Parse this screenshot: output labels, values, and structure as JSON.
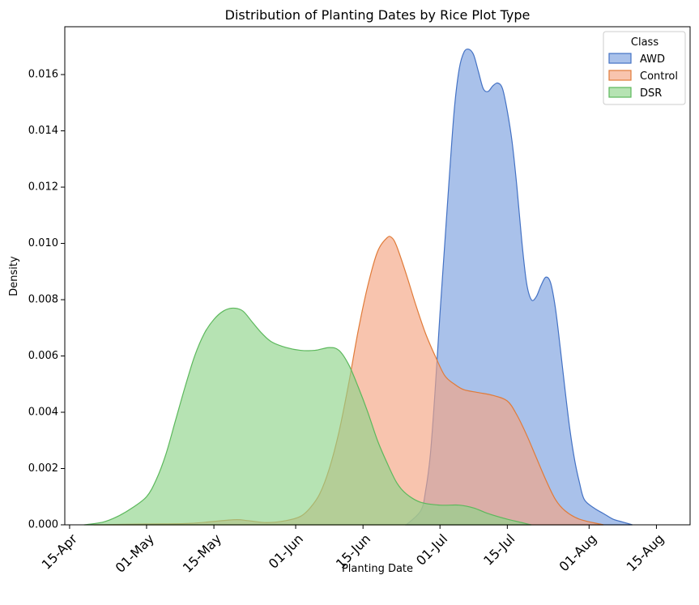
{
  "chart_data": {
    "type": "area",
    "title": "Distribution of Planting Dates by Rice Plot Type",
    "xlabel": "Planting Date",
    "ylabel": "Density",
    "xlim": [
      "2023-04-14",
      "2023-08-22"
    ],
    "ylim": [
      0,
      0.0177
    ],
    "x_ticks": [
      {
        "date": "2023-04-15",
        "label": "15-Apr"
      },
      {
        "date": "2023-05-01",
        "label": "01-May"
      },
      {
        "date": "2023-05-15",
        "label": "15-May"
      },
      {
        "date": "2023-06-01",
        "label": "01-Jun"
      },
      {
        "date": "2023-06-15",
        "label": "15-Jun"
      },
      {
        "date": "2023-07-01",
        "label": "01-Jul"
      },
      {
        "date": "2023-07-15",
        "label": "15-Jul"
      },
      {
        "date": "2023-08-01",
        "label": "01-Aug"
      },
      {
        "date": "2023-08-15",
        "label": "15-Aug"
      }
    ],
    "y_ticks": [
      {
        "value": 0.0,
        "label": "0.000"
      },
      {
        "value": 0.002,
        "label": "0.002"
      },
      {
        "value": 0.004,
        "label": "0.004"
      },
      {
        "value": 0.006,
        "label": "0.006"
      },
      {
        "value": 0.008,
        "label": "0.008"
      },
      {
        "value": 0.01,
        "label": "0.010"
      },
      {
        "value": 0.012,
        "label": "0.012"
      },
      {
        "value": 0.014,
        "label": "0.014"
      },
      {
        "value": 0.016,
        "label": "0.016"
      }
    ],
    "grid": false,
    "legend": {
      "title": "Class",
      "position": "top-right"
    },
    "series": [
      {
        "name": "AWD",
        "fill": "#7b9fde",
        "stroke": "#4472c4",
        "points": [
          [
            "2023-06-24",
            0.0
          ],
          [
            "2023-06-27",
            0.0005
          ],
          [
            "2023-06-28",
            0.0012
          ],
          [
            "2023-06-29",
            0.0025
          ],
          [
            "2023-06-30",
            0.0048
          ],
          [
            "2023-07-01",
            0.0075
          ],
          [
            "2023-07-02",
            0.01
          ],
          [
            "2023-07-03",
            0.0125
          ],
          [
            "2023-07-04",
            0.0148
          ],
          [
            "2023-07-05",
            0.0162
          ],
          [
            "2023-07-06",
            0.0168
          ],
          [
            "2023-07-07",
            0.0169
          ],
          [
            "2023-07-08",
            0.0167
          ],
          [
            "2023-07-09",
            0.0161
          ],
          [
            "2023-07-10",
            0.0155
          ],
          [
            "2023-07-11",
            0.0154
          ],
          [
            "2023-07-12",
            0.0156
          ],
          [
            "2023-07-13",
            0.0157
          ],
          [
            "2023-07-14",
            0.0155
          ],
          [
            "2023-07-15",
            0.0147
          ],
          [
            "2023-07-16",
            0.0136
          ],
          [
            "2023-07-17",
            0.012
          ],
          [
            "2023-07-18",
            0.0101
          ],
          [
            "2023-07-19",
            0.0086
          ],
          [
            "2023-07-20",
            0.008
          ],
          [
            "2023-07-21",
            0.0081
          ],
          [
            "2023-07-22",
            0.0085
          ],
          [
            "2023-07-23",
            0.0088
          ],
          [
            "2023-07-24",
            0.0086
          ],
          [
            "2023-07-25",
            0.0077
          ],
          [
            "2023-07-26",
            0.0063
          ],
          [
            "2023-07-27",
            0.0048
          ],
          [
            "2023-07-28",
            0.0034
          ],
          [
            "2023-07-29",
            0.0023
          ],
          [
            "2023-07-30",
            0.0015
          ],
          [
            "2023-07-31",
            0.0009
          ],
          [
            "2023-08-02",
            0.0006
          ],
          [
            "2023-08-04",
            0.0004
          ],
          [
            "2023-08-06",
            0.0002
          ],
          [
            "2023-08-08",
            0.0001
          ],
          [
            "2023-08-10",
            0.0
          ]
        ]
      },
      {
        "name": "Control",
        "fill": "#f4a582",
        "stroke": "#e07b39",
        "points": [
          [
            "2023-04-20",
            0.0
          ],
          [
            "2023-05-01",
            3e-05
          ],
          [
            "2023-05-10",
            5e-05
          ],
          [
            "2023-05-19",
            0.00018
          ],
          [
            "2023-05-22",
            0.00015
          ],
          [
            "2023-05-26",
            8e-05
          ],
          [
            "2023-05-30",
            0.00015
          ],
          [
            "2023-06-02",
            0.0003
          ],
          [
            "2023-06-04",
            0.0006
          ],
          [
            "2023-06-06",
            0.0011
          ],
          [
            "2023-06-08",
            0.002
          ],
          [
            "2023-06-10",
            0.0033
          ],
          [
            "2023-06-12",
            0.005
          ],
          [
            "2023-06-14",
            0.0069
          ],
          [
            "2023-06-16",
            0.0085
          ],
          [
            "2023-06-18",
            0.0097
          ],
          [
            "2023-06-20",
            0.0102
          ],
          [
            "2023-06-21",
            0.0102
          ],
          [
            "2023-06-22",
            0.0099
          ],
          [
            "2023-06-24",
            0.0089
          ],
          [
            "2023-06-26",
            0.0078
          ],
          [
            "2023-06-28",
            0.0068
          ],
          [
            "2023-06-30",
            0.006
          ],
          [
            "2023-07-02",
            0.0053
          ],
          [
            "2023-07-04",
            0.005
          ],
          [
            "2023-07-06",
            0.0048
          ],
          [
            "2023-07-09",
            0.0047
          ],
          [
            "2023-07-12",
            0.0046
          ],
          [
            "2023-07-15",
            0.0044
          ],
          [
            "2023-07-17",
            0.0039
          ],
          [
            "2023-07-19",
            0.0032
          ],
          [
            "2023-07-21",
            0.0024
          ],
          [
            "2023-07-23",
            0.0016
          ],
          [
            "2023-07-25",
            0.0009
          ],
          [
            "2023-07-27",
            0.0005
          ],
          [
            "2023-07-30",
            0.0002
          ],
          [
            "2023-08-04",
            0.0
          ]
        ]
      },
      {
        "name": "DSR",
        "fill": "#8fd48a",
        "stroke": "#5cb85c",
        "points": [
          [
            "2023-04-18",
            0.0
          ],
          [
            "2023-04-22",
            0.0001
          ],
          [
            "2023-04-25",
            0.0003
          ],
          [
            "2023-04-28",
            0.0006
          ],
          [
            "2023-05-01",
            0.001
          ],
          [
            "2023-05-03",
            0.0016
          ],
          [
            "2023-05-05",
            0.0025
          ],
          [
            "2023-05-07",
            0.0037
          ],
          [
            "2023-05-09",
            0.0049
          ],
          [
            "2023-05-11",
            0.006
          ],
          [
            "2023-05-13",
            0.0068
          ],
          [
            "2023-05-15",
            0.0073
          ],
          [
            "2023-05-17",
            0.0076
          ],
          [
            "2023-05-19",
            0.0077
          ],
          [
            "2023-05-21",
            0.0076
          ],
          [
            "2023-05-23",
            0.0072
          ],
          [
            "2023-05-25",
            0.0068
          ],
          [
            "2023-05-27",
            0.0065
          ],
          [
            "2023-05-30",
            0.0063
          ],
          [
            "2023-06-02",
            0.0062
          ],
          [
            "2023-06-05",
            0.0062
          ],
          [
            "2023-06-08",
            0.0063
          ],
          [
            "2023-06-10",
            0.0062
          ],
          [
            "2023-06-12",
            0.0057
          ],
          [
            "2023-06-14",
            0.0049
          ],
          [
            "2023-06-16",
            0.004
          ],
          [
            "2023-06-18",
            0.003
          ],
          [
            "2023-06-20",
            0.0022
          ],
          [
            "2023-06-22",
            0.0015
          ],
          [
            "2023-06-24",
            0.0011
          ],
          [
            "2023-06-27",
            0.0008
          ],
          [
            "2023-07-01",
            0.0007
          ],
          [
            "2023-07-05",
            0.0007
          ],
          [
            "2023-07-08",
            0.0006
          ],
          [
            "2023-07-11",
            0.0004
          ],
          [
            "2023-07-15",
            0.0002
          ],
          [
            "2023-07-20",
            0.0
          ]
        ]
      }
    ]
  }
}
